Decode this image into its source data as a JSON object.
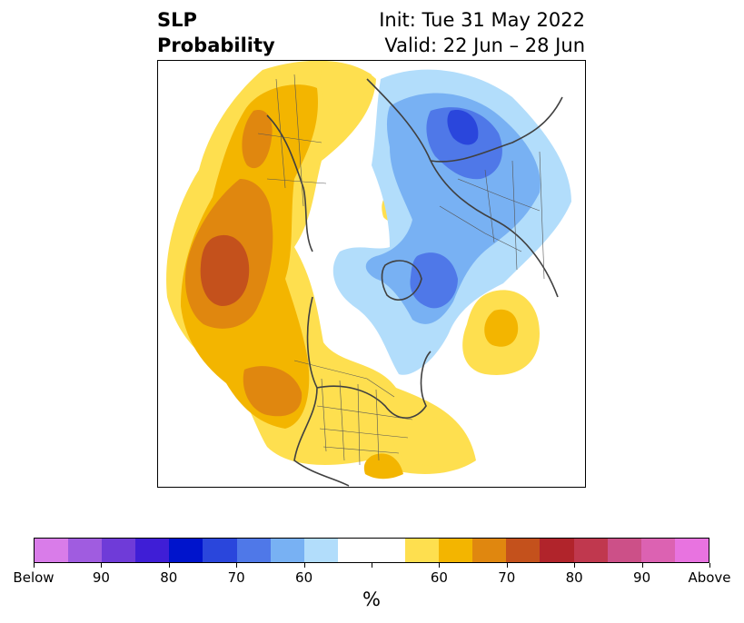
{
  "title": {
    "left_line1": "SLP",
    "left_line2": "Probability",
    "right_line1": "Init: Tue 31 May 2022",
    "right_line2": "Valid: 22 Jun – 28 Jun"
  },
  "colorbar": {
    "unit_label": "%",
    "colors": [
      "#d97ce9",
      "#a05ce0",
      "#6f3bd8",
      "#3f1ed6",
      "#0014cc",
      "#2a46dc",
      "#4f78e8",
      "#78b1f3",
      "#b2ddfb",
      "#ffffff",
      "#ffffff",
      "#fedf4f",
      "#f3b500",
      "#e0870f",
      "#c4511c",
      "#b1242b",
      "#c0384e",
      "#cc5088",
      "#dc62b2",
      "#e873e0"
    ],
    "tick_labels": [
      "Below",
      "90",
      "80",
      "70",
      "60",
      "",
      "60",
      "70",
      "80",
      "90",
      "Above"
    ]
  },
  "map_layers": {
    "above_60": "#fedf4f",
    "above_65": "#f3b500",
    "above_70": "#e0870f",
    "above_75": "#c4511c",
    "below_60": "#b2ddfb",
    "below_65": "#78b1f3",
    "below_70": "#4f78e8",
    "below_75": "#2a46dc",
    "coastline": "#404040",
    "borders": "#555555"
  }
}
